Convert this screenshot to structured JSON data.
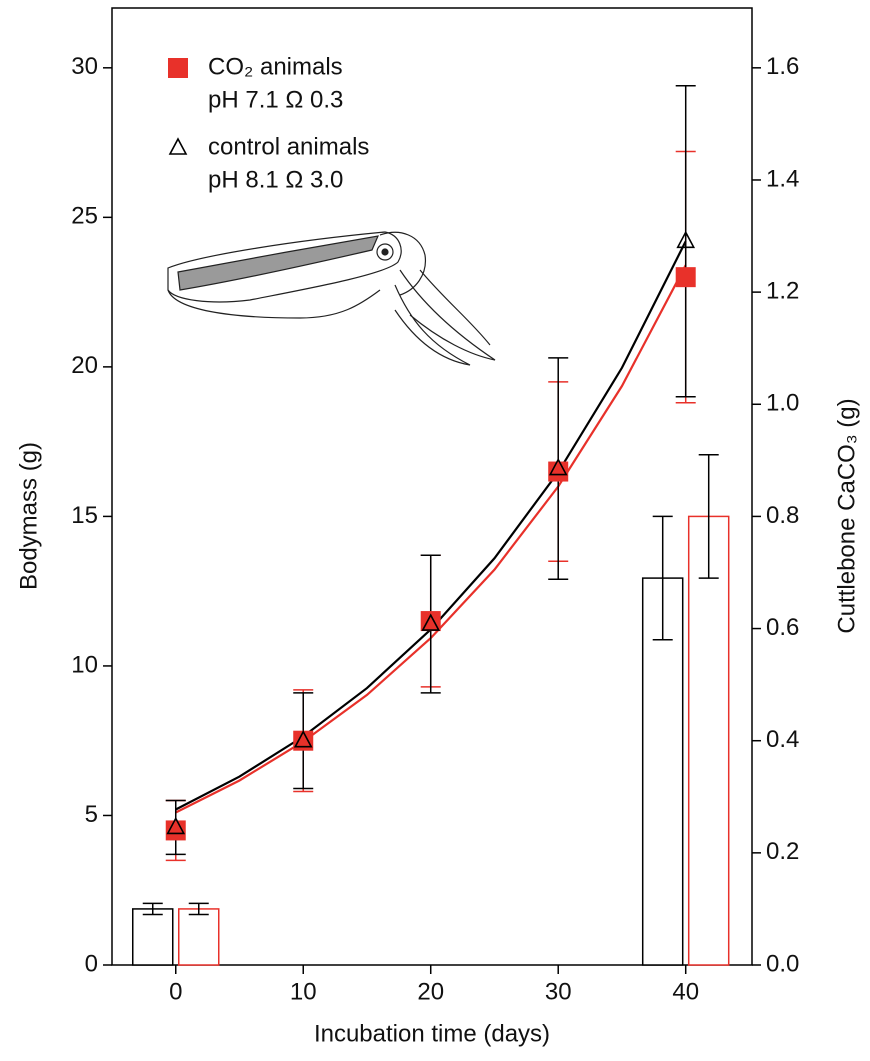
{
  "chart_data": {
    "type": "line",
    "x_label": "Incubation time (days)",
    "y_label": "Bodymass (g)",
    "y2_label": "Cuttlebone CaCO₃ (g)",
    "xlim": [
      -5,
      45.2
    ],
    "xticks": [
      0,
      10,
      20,
      30,
      40
    ],
    "ylim": [
      0,
      32
    ],
    "yticks": [
      0,
      5,
      10,
      15,
      20,
      25,
      30
    ],
    "y2lim": [
      0,
      1.7067
    ],
    "y2ticks": [
      {
        "value": 0,
        "label": "0.0"
      },
      0.2,
      0.4,
      0.6,
      0.8,
      {
        "value": 1,
        "label": "1.0"
      },
      1.2,
      1.4,
      1.6
    ],
    "series": [
      {
        "name": "CO₂ animals",
        "color": "#e8312a",
        "marker": "square",
        "x": [
          0,
          10,
          20,
          30,
          40
        ],
        "values": [
          4.5,
          7.5,
          11.5,
          16.5,
          23
        ],
        "errors": [
          1.0,
          1.7,
          2.2,
          3.0,
          4.2
        ]
      },
      {
        "name": "control animals",
        "color": "#000000",
        "marker": "triangle",
        "x": [
          0,
          10,
          20,
          30,
          40
        ],
        "values": [
          4.6,
          7.5,
          11.4,
          16.6,
          24.2
        ],
        "errors": [
          0.9,
          1.6,
          2.3,
          3.7,
          5.2
        ]
      }
    ],
    "legend_details": [
      "pH 7.1 Ω 0.3",
      "pH 8.1 Ω 3.0"
    ],
    "fit_lines": [
      {
        "color": "#e8312a",
        "x": [
          0,
          5,
          10,
          15,
          20,
          25,
          30,
          35,
          40
        ],
        "values": [
          5.1,
          6.17,
          7.47,
          9.03,
          10.93,
          13.22,
          16.0,
          19.36,
          23.4
        ]
      },
      {
        "color": "#000000",
        "x": [
          0,
          5,
          10,
          15,
          20,
          25,
          30,
          35,
          40
        ],
        "values": [
          5.2,
          6.3,
          7.64,
          9.26,
          11.22,
          13.6,
          16.48,
          19.97,
          24.2
        ]
      }
    ],
    "bars": [
      {
        "color": "#000000",
        "axis": "y2",
        "x": [
          0,
          40
        ],
        "values": [
          0.1,
          0.69
        ],
        "errors": [
          0.01,
          0.11
        ]
      },
      {
        "color": "#e8312a",
        "axis": "y2",
        "x": [
          0,
          40
        ],
        "values": [
          0.1,
          0.8
        ],
        "errors": [
          0.01,
          0.11
        ]
      }
    ]
  }
}
